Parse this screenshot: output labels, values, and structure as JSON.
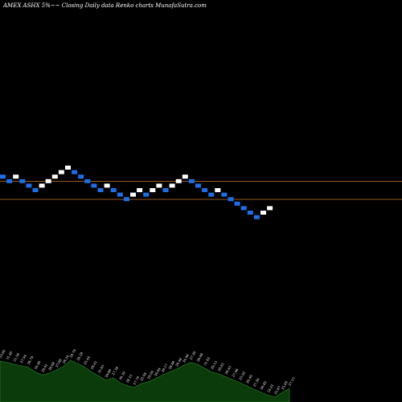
{
  "chart_data": {
    "type": "renko",
    "title": "AMEX  ASHX  5%~~  Closing Daily data  Renko  charts MunafaSutra.com",
    "colors": {
      "background": "#000000",
      "up_brick": "#ffffff",
      "down_brick": "#1e6fe6",
      "resistance_line": "#c8782a",
      "volume_area": "#0b3a0b",
      "volume_line": "#2a8a2a"
    },
    "price_lines": [
      28.5,
      26.5
    ],
    "bricks": [
      {
        "dir": "down",
        "price": 29.0
      },
      {
        "dir": "down",
        "price": 28.5
      },
      {
        "dir": "up",
        "price": 29.0
      },
      {
        "dir": "down",
        "price": 28.5
      },
      {
        "dir": "down",
        "price": 28.0
      },
      {
        "dir": "down",
        "price": 27.5
      },
      {
        "dir": "up",
        "price": 28.0
      },
      {
        "dir": "up",
        "price": 28.5
      },
      {
        "dir": "up",
        "price": 29.0
      },
      {
        "dir": "up",
        "price": 29.5
      },
      {
        "dir": "up",
        "price": 30.0
      },
      {
        "dir": "down",
        "price": 29.5
      },
      {
        "dir": "down",
        "price": 29.0
      },
      {
        "dir": "down",
        "price": 28.5
      },
      {
        "dir": "down",
        "price": 28.0
      },
      {
        "dir": "down",
        "price": 27.5
      },
      {
        "dir": "up",
        "price": 28.0
      },
      {
        "dir": "down",
        "price": 27.5
      },
      {
        "dir": "down",
        "price": 27.0
      },
      {
        "dir": "down",
        "price": 26.5
      },
      {
        "dir": "up",
        "price": 27.0
      },
      {
        "dir": "up",
        "price": 27.5
      },
      {
        "dir": "down",
        "price": 27.0
      },
      {
        "dir": "up",
        "price": 27.5
      },
      {
        "dir": "up",
        "price": 28.0
      },
      {
        "dir": "down",
        "price": 27.5
      },
      {
        "dir": "up",
        "price": 28.0
      },
      {
        "dir": "up",
        "price": 28.5
      },
      {
        "dir": "up",
        "price": 29.0
      },
      {
        "dir": "down",
        "price": 28.5
      },
      {
        "dir": "down",
        "price": 28.0
      },
      {
        "dir": "down",
        "price": 27.5
      },
      {
        "dir": "down",
        "price": 27.0
      },
      {
        "dir": "up",
        "price": 27.5
      },
      {
        "dir": "down",
        "price": 27.0
      },
      {
        "dir": "down",
        "price": 26.5
      },
      {
        "dir": "down",
        "price": 26.0
      },
      {
        "dir": "down",
        "price": 25.5
      },
      {
        "dir": "down",
        "price": 25.0
      },
      {
        "dir": "down",
        "price": 24.5
      },
      {
        "dir": "up",
        "price": 25.0
      },
      {
        "dir": "up",
        "price": 25.5
      }
    ],
    "volume": [
      0.85,
      0.82,
      0.78,
      0.75,
      0.72,
      0.62,
      0.56,
      0.6,
      0.66,
      0.74,
      0.86,
      0.8,
      0.72,
      0.62,
      0.54,
      0.45,
      0.5,
      0.4,
      0.34,
      0.3,
      0.38,
      0.42,
      0.48,
      0.56,
      0.62,
      0.68,
      0.76,
      0.82,
      0.78,
      0.7,
      0.62,
      0.58,
      0.52,
      0.46,
      0.4,
      0.33,
      0.26,
      0.2,
      0.14,
      0.1,
      0.2,
      0.28
    ],
    "volume_labels": [
      "33.00",
      "31.46",
      "31.58",
      "27.94",
      "26.79",
      "24.46",
      "29.01",
      "26.68",
      "27.68",
      "28.34",
      "29.79",
      "29.29",
      "25.44",
      "28.41",
      "31.63",
      "28.68",
      "27.38",
      "30.39",
      "28.15",
      "27.79",
      "25.04",
      "29.04",
      "26.64",
      "28.17",
      "28.88",
      "29.48",
      "24.98",
      "27.36",
      "26.88",
      "31.82",
      "29.13",
      "28.83",
      "26.43",
      "27.96",
      "25.92",
      "26.49",
      "27.59",
      "26.82",
      "24.41",
      "25.87",
      "25.09",
      "27.13"
    ]
  }
}
